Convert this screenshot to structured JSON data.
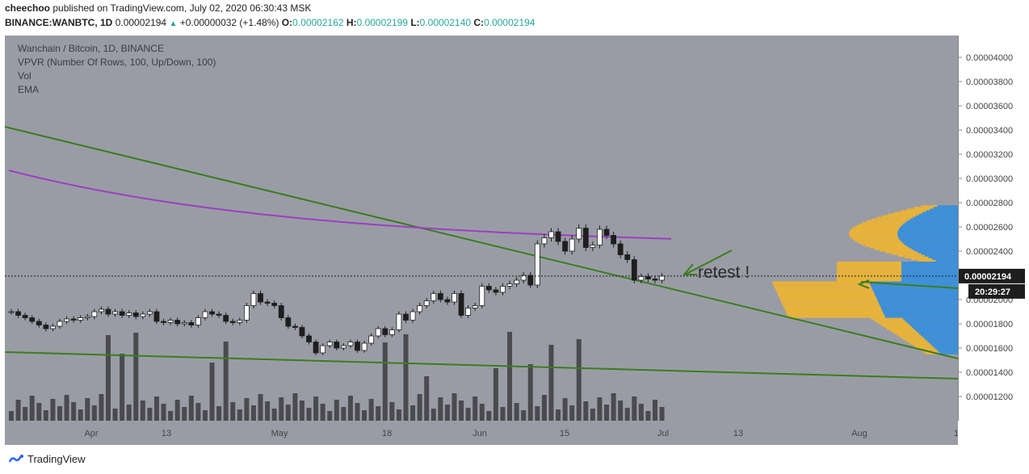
{
  "header": {
    "author": "cheechoo",
    "published_text": "published on TradingView.com, July 02, 2020 06:30:43 MSK",
    "symbol_line": "BINANCE:WANBTC, 1D",
    "last_price": "0.00002194",
    "change": "+0.00000032 (+1.48%)",
    "o_label": "O:",
    "o_value": "0.00002162",
    "h_label": "H:",
    "h_value": "0.00002199",
    "l_label": "L:",
    "l_value": "0.00002140",
    "c_label": "C:",
    "c_value": "0.00002194"
  },
  "legend": {
    "title": "Wanchain / Bitcoin, 1D, BINANCE",
    "vpvr": "VPVR (Number Of Rows, 100, Up/Down, 100)",
    "vol": "Vol",
    "ema": "EMA"
  },
  "annotation": "retest !",
  "price_label": "0.00002194",
  "countdown_label": "20:29:27",
  "footer_brand": "TradingView",
  "colors": {
    "background": "#9a9ca5",
    "trendline": "#3a7d1e",
    "ema": "#9b3fbf",
    "vpvr_up": "#3d8fd8",
    "vpvr_down": "#e8b33a",
    "volume": "#4a4a4f",
    "candle_up": "#ffffff",
    "candle_down": "#1e1e1e"
  },
  "chart_data": {
    "type": "candlestick",
    "y_axis_ticks": [
      "0.00004000",
      "0.00003800",
      "0.00003600",
      "0.00003400",
      "0.00003200",
      "0.00003000",
      "0.00002800",
      "0.00002600",
      "0.00002400",
      "0.00002000",
      "0.00001800",
      "0.00001600",
      "0.00001400",
      "0.00001200"
    ],
    "x_axis_ticks": [
      "Apr",
      "13",
      "May",
      "18",
      "Jun",
      "15",
      "Jul",
      "13",
      "Aug",
      "1"
    ],
    "ylim": [
      1e-05,
      4.18e-05
    ],
    "candles_close": [
      1.9e-05,
      1.87e-05,
      1.85e-05,
      1.82e-05,
      1.79e-05,
      1.76e-05,
      1.78e-05,
      1.82e-05,
      1.84e-05,
      1.83e-05,
      1.85e-05,
      1.86e-05,
      1.9e-05,
      1.92e-05,
      1.88e-05,
      1.9e-05,
      1.87e-05,
      1.89e-05,
      1.86e-05,
      1.88e-05,
      1.9e-05,
      1.82e-05,
      1.81e-05,
      1.83e-05,
      1.8e-05,
      1.81e-05,
      1.79e-05,
      1.85e-05,
      1.9e-05,
      1.88e-05,
      1.87e-05,
      1.82e-05,
      1.81e-05,
      1.83e-05,
      1.95e-05,
      2.05e-05,
      1.98e-05,
      1.97e-05,
      1.95e-05,
      1.85e-05,
      1.78e-05,
      1.77e-05,
      1.7e-05,
      1.65e-05,
      1.56e-05,
      1.62e-05,
      1.65e-05,
      1.6e-05,
      1.62e-05,
      1.65e-05,
      1.58e-05,
      1.64e-05,
      1.7e-05,
      1.76e-05,
      1.71e-05,
      1.75e-05,
      1.88e-05,
      1.83e-05,
      1.9e-05,
      1.95e-05,
      1.99e-05,
      2.05e-05,
      2e-05,
      1.98e-05,
      2.05e-05,
      1.87e-05,
      1.93e-05,
      1.95e-05,
      2.11e-05,
      2.08e-05,
      2.06e-05,
      2.11e-05,
      2.13e-05,
      2.16e-05,
      2.2e-05,
      2.12e-05,
      2.46e-05,
      2.51e-05,
      2.56e-05,
      2.48e-05,
      2.4e-05,
      2.5e-05,
      2.59e-05,
      2.43e-05,
      2.45e-05,
      2.58e-05,
      2.53e-05,
      2.46e-05,
      2.37e-05,
      2.33e-05,
      2.16e-05,
      2.19e-05,
      2.17e-05,
      2.16e-05,
      2.194e-05
    ],
    "vpvr_note": "Volume profile on right with up (blue) and down (yellow) volume",
    "ema_label": "EMA"
  }
}
